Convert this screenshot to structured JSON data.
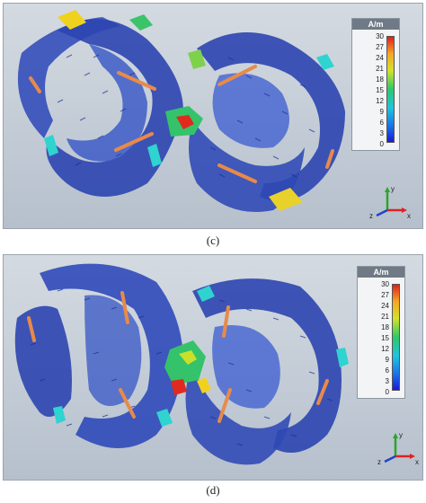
{
  "panels": [
    {
      "id": "c",
      "caption": "(c)",
      "legend": {
        "unit": "A/m",
        "ticks": [
          "30",
          "27",
          "24",
          "21",
          "18",
          "15",
          "12",
          "9",
          "6",
          "3",
          "0"
        ],
        "min": 0,
        "max": 30
      },
      "axes": {
        "x": "x",
        "y": "y",
        "z": "z"
      }
    },
    {
      "id": "d",
      "caption": "(d)",
      "legend": {
        "unit": "A/m",
        "ticks": [
          "30",
          "27",
          "24",
          "21",
          "18",
          "15",
          "12",
          "9",
          "6",
          "3",
          "0"
        ],
        "min": 0,
        "max": 30
      },
      "axes": {
        "x": "x",
        "y": "y",
        "z": "z"
      }
    }
  ],
  "colors": {
    "low": "#1b1bd6",
    "mid": "#2ec86a",
    "high": "#e01e1e",
    "flow_arrow": "#e88a4a",
    "vector": "#1e3aa8"
  }
}
